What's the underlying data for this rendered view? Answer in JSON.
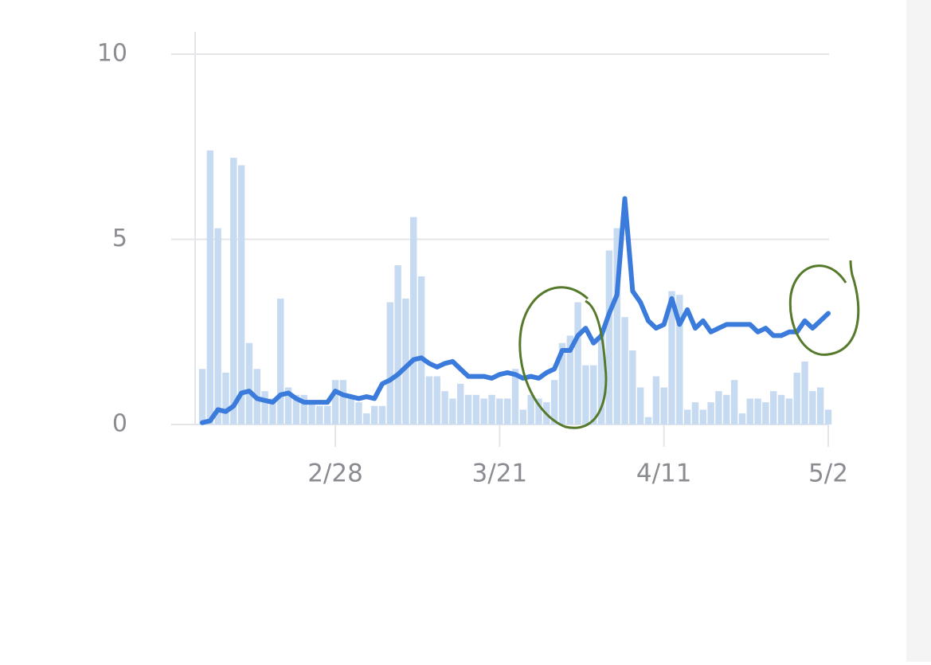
{
  "chart_data": {
    "type": "bar",
    "categories": [
      null,
      null,
      null,
      null,
      null,
      null,
      null,
      null,
      null,
      null,
      null,
      null,
      null,
      null,
      null,
      null,
      null,
      "2/28",
      null,
      null,
      null,
      null,
      null,
      null,
      null,
      null,
      null,
      null,
      null,
      null,
      null,
      null,
      null,
      null,
      null,
      null,
      null,
      null,
      "3/21",
      null,
      null,
      null,
      null,
      null,
      null,
      null,
      null,
      null,
      null,
      null,
      null,
      null,
      null,
      null,
      null,
      null,
      null,
      null,
      null,
      "4/11",
      null,
      null,
      null,
      null,
      null,
      null,
      null,
      null,
      null,
      null,
      null,
      null,
      null,
      null,
      null,
      null,
      null,
      null,
      null,
      null,
      "5/2"
    ],
    "series": [
      {
        "type": "bar",
        "color": "#c6daf2",
        "values": [
          1.5,
          7.4,
          5.3,
          1.4,
          7.2,
          7.0,
          2.2,
          1.5,
          0.9,
          0.7,
          3.4,
          1.0,
          0.8,
          0.8,
          0.6,
          0.5,
          0.5,
          1.2,
          1.2,
          0.7,
          0.6,
          0.3,
          0.5,
          0.5,
          3.3,
          4.3,
          3.4,
          5.6,
          4.0,
          1.3,
          1.3,
          0.9,
          0.7,
          1.1,
          0.8,
          0.8,
          0.7,
          0.8,
          0.7,
          0.7,
          1.5,
          0.4,
          0.8,
          0.7,
          0.6,
          1.2,
          2.2,
          2.4,
          3.3,
          1.6,
          1.6,
          2.4,
          4.7,
          5.3,
          2.9,
          2.0,
          1.0,
          0.2,
          1.3,
          1.0,
          3.6,
          3.5,
          0.4,
          0.6,
          0.4,
          0.6,
          0.9,
          0.8,
          1.2,
          0.3,
          0.7,
          0.7,
          0.6,
          0.9,
          0.8,
          0.7,
          1.4,
          1.7,
          0.9,
          1.0,
          0.4
        ]
      },
      {
        "type": "line",
        "color": "#3a7bdc",
        "values": [
          0.05,
          0.1,
          0.4,
          0.35,
          0.5,
          0.85,
          0.9,
          0.7,
          0.65,
          0.6,
          0.8,
          0.85,
          0.7,
          0.6,
          0.6,
          0.6,
          0.6,
          0.9,
          0.8,
          0.75,
          0.7,
          0.75,
          0.7,
          1.1,
          1.2,
          1.35,
          1.55,
          1.75,
          1.8,
          1.65,
          1.55,
          1.65,
          1.7,
          1.5,
          1.3,
          1.3,
          1.3,
          1.25,
          1.35,
          1.4,
          1.35,
          1.25,
          1.3,
          1.25,
          1.4,
          1.5,
          2.0,
          2.0,
          2.4,
          2.6,
          2.2,
          2.4,
          3.0,
          3.5,
          6.1,
          3.6,
          3.3,
          2.8,
          2.6,
          2.7,
          3.4,
          2.7,
          3.1,
          2.6,
          2.8,
          2.5,
          2.6,
          2.7,
          2.7,
          2.7,
          2.7,
          2.5,
          2.6,
          2.4,
          2.4,
          2.5,
          2.5,
          2.8,
          2.6,
          2.8,
          3.0
        ]
      }
    ],
    "ylim": [
      0,
      10
    ],
    "yticks": [
      0,
      5,
      10
    ],
    "grid": true
  }
}
